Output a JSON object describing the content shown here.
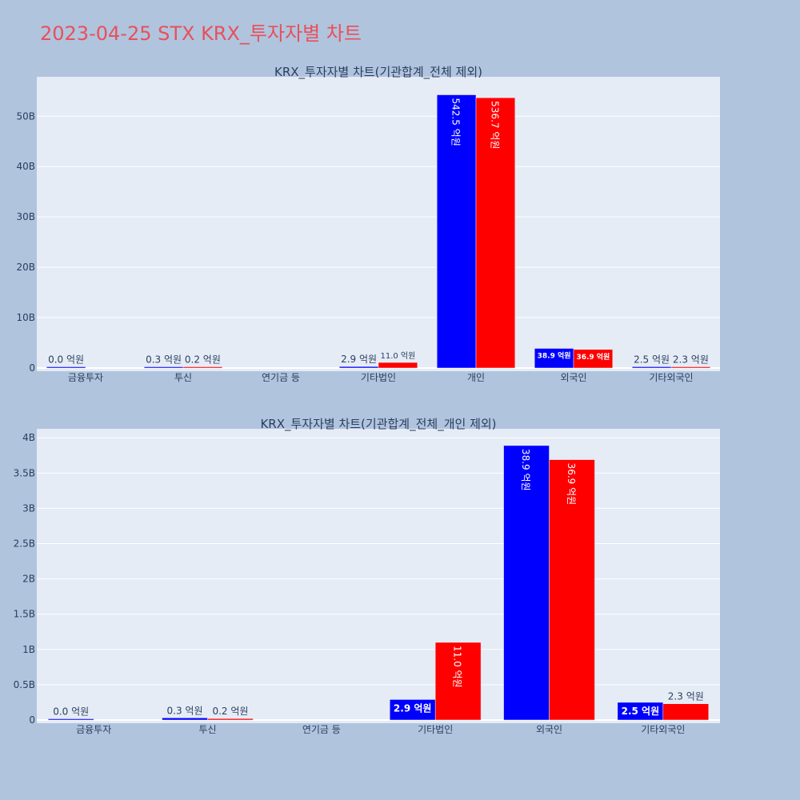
{
  "page": {
    "title": "2023-04-25 STX KRX_투자자별 차트",
    "title_color": "#e8505b",
    "background": "#b0c4de",
    "plot_background": "#e5ecf6"
  },
  "colors": {
    "series_a": "#0000ff",
    "series_b": "#ff0000"
  },
  "chart_data": [
    {
      "type": "bar",
      "title": "KRX_투자자별 차트(기관합계_전체 제외)",
      "categories": [
        "금융투자",
        "투신",
        "연기금 등",
        "기타법인",
        "개인",
        "외국인",
        "기타외국인"
      ],
      "ylim": [
        0,
        56000000000
      ],
      "yticks": [
        0,
        10000000000,
        20000000000,
        30000000000,
        40000000000,
        50000000000
      ],
      "ytick_labels": [
        "0",
        "10B",
        "20B",
        "30B",
        "40B",
        "50B"
      ],
      "grid": true,
      "series": [
        {
          "color": "#0000ff",
          "values": [
            0,
            30000000,
            null,
            290000000,
            54250000000,
            3890000000,
            250000000
          ],
          "labels": [
            "0.0 억원",
            "0.3 억원",
            "",
            "2.9 억원",
            "542.5 억원",
            "38.9 억원",
            "2.5 억원"
          ],
          "label_pos": [
            "outside",
            "outside",
            "none",
            "outside",
            "inside-rotated",
            "inside-small",
            "outside"
          ]
        },
        {
          "color": "#ff0000",
          "values": [
            null,
            20000000,
            null,
            1100000000,
            53670000000,
            3690000000,
            230000000
          ],
          "labels": [
            "",
            "0.2 억원",
            "",
            "11.0 억원",
            "536.7 억원",
            "36.9 억원",
            "2.3 억원"
          ],
          "label_pos": [
            "none",
            "outside",
            "none",
            "outside-small",
            "inside-rotated",
            "inside-small",
            "outside"
          ]
        }
      ]
    },
    {
      "type": "bar",
      "title": "KRX_투자자별 차트(기관합계_전체_개인 제외)",
      "categories": [
        "금융투자",
        "투신",
        "연기금 등",
        "기타법인",
        "외국인",
        "기타외국인"
      ],
      "ylim": [
        0,
        4150000000
      ],
      "yticks": [
        0,
        500000000,
        1000000000,
        1500000000,
        2000000000,
        2500000000,
        3000000000,
        3500000000,
        4000000000
      ],
      "ytick_labels": [
        "0",
        "0.5B",
        "1B",
        "1.5B",
        "2B",
        "2.5B",
        "3B",
        "3.5B",
        "4B"
      ],
      "grid": true,
      "series": [
        {
          "color": "#0000ff",
          "values": [
            0,
            30000000,
            null,
            290000000,
            3890000000,
            250000000
          ],
          "labels": [
            "0.0 억원",
            "0.3 억원",
            "",
            "2.9 억원",
            "38.9 억원",
            "2.5 억원"
          ],
          "label_pos": [
            "outside",
            "outside",
            "none",
            "inside-bold",
            "inside-rotated",
            "inside-bold"
          ]
        },
        {
          "color": "#ff0000",
          "values": [
            null,
            20000000,
            null,
            1100000000,
            3690000000,
            230000000
          ],
          "labels": [
            "",
            "0.2 억원",
            "",
            "11.0 억원",
            "36.9 억원",
            "2.3 억원"
          ],
          "label_pos": [
            "none",
            "outside",
            "none",
            "inside-rotated",
            "inside-rotated",
            "outside"
          ]
        }
      ]
    }
  ]
}
